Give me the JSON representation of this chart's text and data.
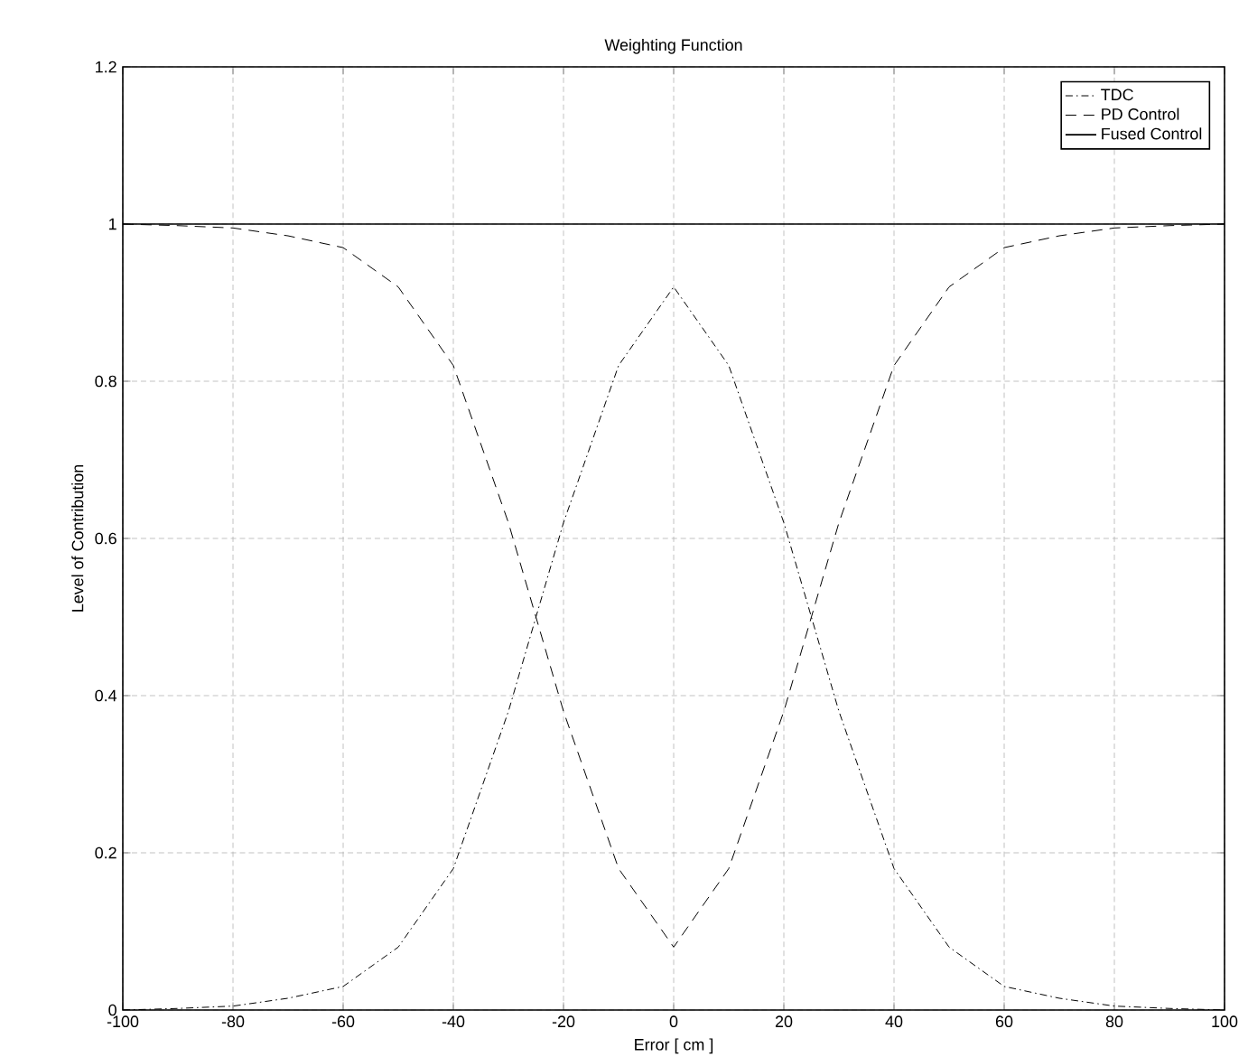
{
  "chart_data": {
    "type": "line",
    "title": "Weighting Function",
    "xlabel": "Error [ cm ]",
    "ylabel": "Level of Contribution",
    "x": [
      -100,
      -90,
      -80,
      -70,
      -60,
      -50,
      -40,
      -30,
      -25,
      -20,
      -10,
      0,
      10,
      20,
      25,
      30,
      40,
      50,
      60,
      70,
      80,
      90,
      100
    ],
    "series": [
      {
        "name": "TDC",
        "color": "#000000",
        "line_style": "dashdot",
        "values": [
          0,
          0.002,
          0.005,
          0.015,
          0.03,
          0.08,
          0.18,
          0.38,
          0.5,
          0.62,
          0.82,
          0.92,
          0.82,
          0.62,
          0.5,
          0.38,
          0.18,
          0.08,
          0.03,
          0.015,
          0.005,
          0.002,
          0
        ]
      },
      {
        "name": "PD Control",
        "color": "#000000",
        "line_style": "dashed",
        "values": [
          1,
          0.998,
          0.995,
          0.985,
          0.97,
          0.92,
          0.82,
          0.62,
          0.5,
          0.38,
          0.18,
          0.08,
          0.18,
          0.38,
          0.5,
          0.62,
          0.82,
          0.92,
          0.97,
          0.985,
          0.995,
          0.998,
          1
        ]
      },
      {
        "name": "Fused Control",
        "color": "#000000",
        "line_style": "solid",
        "values": [
          1,
          1,
          1,
          1,
          1,
          1,
          1,
          1,
          1,
          1,
          1,
          1,
          1,
          1,
          1,
          1,
          1,
          1,
          1,
          1,
          1,
          1,
          1
        ]
      }
    ],
    "xlim": [
      -100,
      100
    ],
    "ylim": [
      0,
      1.2
    ],
    "xticks": [
      -100,
      -80,
      -60,
      -40,
      -20,
      0,
      20,
      40,
      60,
      80,
      100
    ],
    "yticks": [
      0,
      0.2,
      0.4,
      0.6,
      0.8,
      1,
      1.2
    ],
    "grid": true,
    "legend": "top right",
    "marker": "none"
  }
}
